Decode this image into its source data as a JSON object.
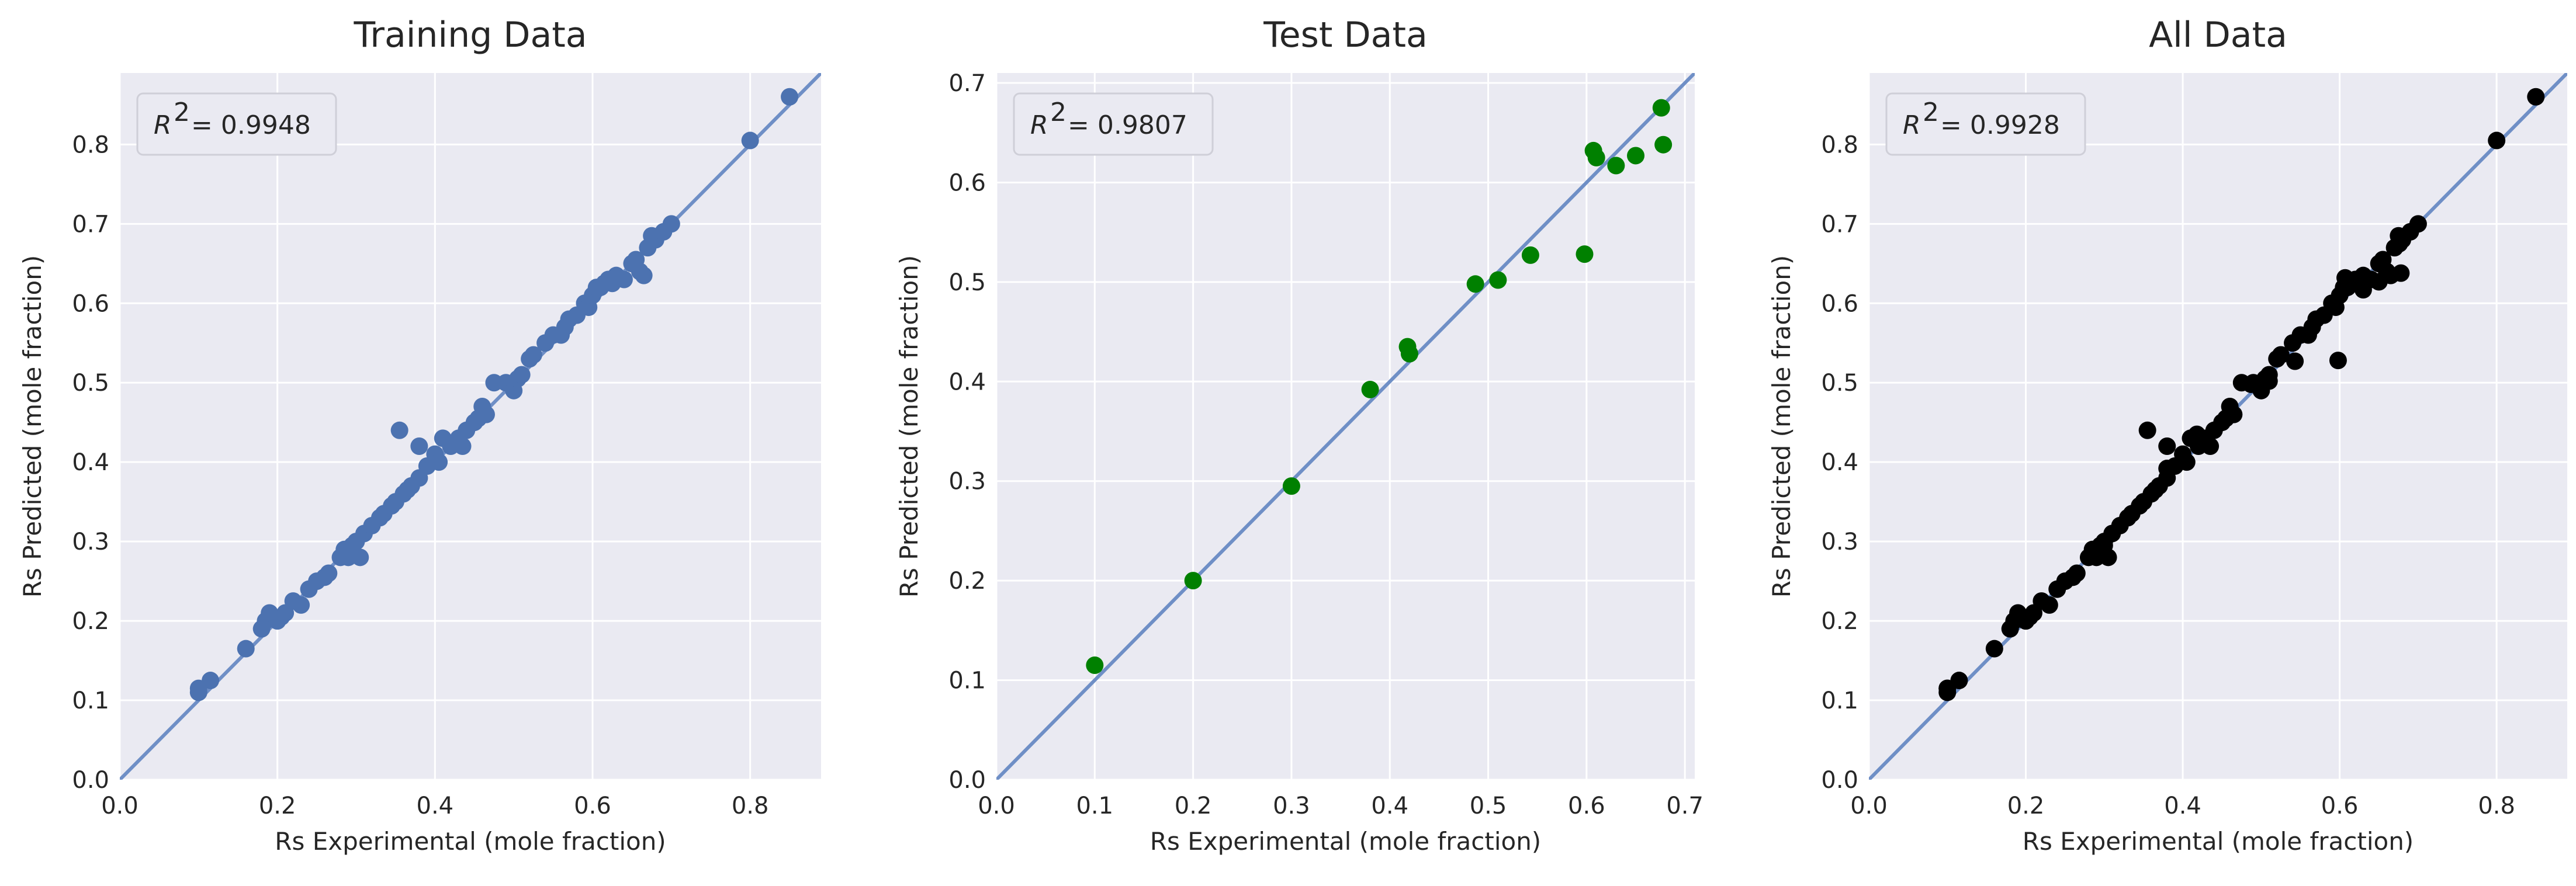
{
  "chart_data": [
    {
      "type": "scatter",
      "title": "Training Data",
      "xlabel": "Rs Experimental (mole fraction)",
      "ylabel": "Rs Predicted (mole fraction)",
      "annotation": "R² = 0.9948",
      "r2_label": "R",
      "r2_value": "= 0.9948",
      "xlim": [
        0.0,
        0.89
      ],
      "ylim": [
        0.0,
        0.89
      ],
      "xticks": [
        0.0,
        0.2,
        0.4,
        0.6,
        0.8
      ],
      "yticks": [
        0.0,
        0.1,
        0.2,
        0.3,
        0.4,
        0.5,
        0.6,
        0.7,
        0.8
      ],
      "xticklabels": [
        "0.0",
        "0.2",
        "0.4",
        "0.6",
        "0.8"
      ],
      "yticklabels": [
        "0.0",
        "0.1",
        "0.2",
        "0.3",
        "0.4",
        "0.5",
        "0.6",
        "0.7",
        "0.8"
      ],
      "grid": true,
      "color": "#4c72b0",
      "line_color": "#6f8fc6",
      "fit_line": [
        [
          0.0,
          0.0
        ],
        [
          0.89,
          0.89
        ]
      ],
      "points": [
        [
          0.1,
          0.11
        ],
        [
          0.1,
          0.115
        ],
        [
          0.115,
          0.125
        ],
        [
          0.16,
          0.165
        ],
        [
          0.18,
          0.19
        ],
        [
          0.185,
          0.2
        ],
        [
          0.19,
          0.21
        ],
        [
          0.2,
          0.2
        ],
        [
          0.205,
          0.205
        ],
        [
          0.21,
          0.21
        ],
        [
          0.22,
          0.225
        ],
        [
          0.23,
          0.22
        ],
        [
          0.24,
          0.24
        ],
        [
          0.25,
          0.25
        ],
        [
          0.26,
          0.255
        ],
        [
          0.265,
          0.26
        ],
        [
          0.28,
          0.28
        ],
        [
          0.285,
          0.29
        ],
        [
          0.29,
          0.28
        ],
        [
          0.295,
          0.295
        ],
        [
          0.3,
          0.3
        ],
        [
          0.305,
          0.28
        ],
        [
          0.31,
          0.31
        ],
        [
          0.32,
          0.32
        ],
        [
          0.33,
          0.33
        ],
        [
          0.335,
          0.335
        ],
        [
          0.345,
          0.345
        ],
        [
          0.35,
          0.35
        ],
        [
          0.36,
          0.36
        ],
        [
          0.365,
          0.365
        ],
        [
          0.37,
          0.37
        ],
        [
          0.355,
          0.44
        ],
        [
          0.38,
          0.42
        ],
        [
          0.38,
          0.38
        ],
        [
          0.39,
          0.395
        ],
        [
          0.4,
          0.41
        ],
        [
          0.405,
          0.4
        ],
        [
          0.41,
          0.43
        ],
        [
          0.42,
          0.42
        ],
        [
          0.425,
          0.425
        ],
        [
          0.43,
          0.43
        ],
        [
          0.435,
          0.42
        ],
        [
          0.44,
          0.44
        ],
        [
          0.45,
          0.45
        ],
        [
          0.455,
          0.455
        ],
        [
          0.46,
          0.47
        ],
        [
          0.465,
          0.46
        ],
        [
          0.475,
          0.5
        ],
        [
          0.49,
          0.5
        ],
        [
          0.5,
          0.49
        ],
        [
          0.505,
          0.505
        ],
        [
          0.51,
          0.51
        ],
        [
          0.52,
          0.53
        ],
        [
          0.525,
          0.535
        ],
        [
          0.54,
          0.55
        ],
        [
          0.55,
          0.56
        ],
        [
          0.56,
          0.56
        ],
        [
          0.565,
          0.57
        ],
        [
          0.57,
          0.58
        ],
        [
          0.58,
          0.585
        ],
        [
          0.59,
          0.6
        ],
        [
          0.595,
          0.595
        ],
        [
          0.6,
          0.61
        ],
        [
          0.605,
          0.62
        ],
        [
          0.61,
          0.62
        ],
        [
          0.615,
          0.625
        ],
        [
          0.62,
          0.63
        ],
        [
          0.625,
          0.625
        ],
        [
          0.63,
          0.635
        ],
        [
          0.64,
          0.63
        ],
        [
          0.65,
          0.65
        ],
        [
          0.655,
          0.655
        ],
        [
          0.66,
          0.64
        ],
        [
          0.665,
          0.635
        ],
        [
          0.67,
          0.67
        ],
        [
          0.675,
          0.685
        ],
        [
          0.68,
          0.68
        ],
        [
          0.69,
          0.69
        ],
        [
          0.7,
          0.7
        ],
        [
          0.8,
          0.805
        ],
        [
          0.85,
          0.86
        ]
      ]
    },
    {
      "type": "scatter",
      "title": "Test Data",
      "xlabel": "Rs Experimental (mole fraction)",
      "ylabel": "Rs Predicted (mole fraction)",
      "annotation": "R² = 0.9807",
      "r2_label": "R",
      "r2_value": "= 0.9807",
      "xlim": [
        0.0,
        0.71
      ],
      "ylim": [
        0.0,
        0.71
      ],
      "xticks": [
        0.0,
        0.1,
        0.2,
        0.3,
        0.4,
        0.5,
        0.6,
        0.7
      ],
      "yticks": [
        0.0,
        0.1,
        0.2,
        0.3,
        0.4,
        0.5,
        0.6,
        0.7
      ],
      "xticklabels": [
        "0.0",
        "0.1",
        "0.2",
        "0.3",
        "0.4",
        "0.5",
        "0.6",
        "0.7"
      ],
      "yticklabels": [
        "0.0",
        "0.1",
        "0.2",
        "0.3",
        "0.4",
        "0.5",
        "0.6",
        "0.7"
      ],
      "grid": true,
      "color": "#008000",
      "line_color": "#6f8fc6",
      "fit_line": [
        [
          0.0,
          0.0
        ],
        [
          0.71,
          0.71
        ]
      ],
      "points": [
        [
          0.1,
          0.115
        ],
        [
          0.2,
          0.2
        ],
        [
          0.3,
          0.295
        ],
        [
          0.38,
          0.392
        ],
        [
          0.418,
          0.435
        ],
        [
          0.42,
          0.428
        ],
        [
          0.487,
          0.498
        ],
        [
          0.51,
          0.502
        ],
        [
          0.543,
          0.527
        ],
        [
          0.598,
          0.528
        ],
        [
          0.607,
          0.632
        ],
        [
          0.61,
          0.625
        ],
        [
          0.63,
          0.617
        ],
        [
          0.65,
          0.627
        ],
        [
          0.676,
          0.675
        ],
        [
          0.678,
          0.638
        ]
      ]
    },
    {
      "type": "scatter",
      "title": "All Data",
      "xlabel": "Rs Experimental (mole fraction)",
      "ylabel": "Rs Predicted (mole fraction)",
      "annotation": "R² = 0.9928",
      "r2_label": "R",
      "r2_value": "= 0.9928",
      "xlim": [
        0.0,
        0.89
      ],
      "ylim": [
        0.0,
        0.89
      ],
      "xticks": [
        0.0,
        0.2,
        0.4,
        0.6,
        0.8
      ],
      "yticks": [
        0.0,
        0.1,
        0.2,
        0.3,
        0.4,
        0.5,
        0.6,
        0.7,
        0.8
      ],
      "xticklabels": [
        "0.0",
        "0.2",
        "0.4",
        "0.6",
        "0.8"
      ],
      "yticklabels": [
        "0.0",
        "0.1",
        "0.2",
        "0.3",
        "0.4",
        "0.5",
        "0.6",
        "0.7",
        "0.8"
      ],
      "grid": true,
      "color": "#000000",
      "line_color": "#6f8fc6",
      "fit_line": [
        [
          0.0,
          0.0
        ],
        [
          0.89,
          0.89
        ]
      ],
      "points": [
        [
          0.1,
          0.11
        ],
        [
          0.1,
          0.115
        ],
        [
          0.115,
          0.125
        ],
        [
          0.16,
          0.165
        ],
        [
          0.18,
          0.19
        ],
        [
          0.185,
          0.2
        ],
        [
          0.19,
          0.21
        ],
        [
          0.2,
          0.2
        ],
        [
          0.205,
          0.205
        ],
        [
          0.21,
          0.21
        ],
        [
          0.22,
          0.225
        ],
        [
          0.23,
          0.22
        ],
        [
          0.24,
          0.24
        ],
        [
          0.25,
          0.25
        ],
        [
          0.26,
          0.255
        ],
        [
          0.265,
          0.26
        ],
        [
          0.28,
          0.28
        ],
        [
          0.285,
          0.29
        ],
        [
          0.29,
          0.28
        ],
        [
          0.295,
          0.295
        ],
        [
          0.3,
          0.3
        ],
        [
          0.305,
          0.28
        ],
        [
          0.31,
          0.31
        ],
        [
          0.32,
          0.32
        ],
        [
          0.33,
          0.33
        ],
        [
          0.335,
          0.335
        ],
        [
          0.345,
          0.345
        ],
        [
          0.35,
          0.35
        ],
        [
          0.36,
          0.36
        ],
        [
          0.365,
          0.365
        ],
        [
          0.37,
          0.37
        ],
        [
          0.355,
          0.44
        ],
        [
          0.38,
          0.42
        ],
        [
          0.38,
          0.38
        ],
        [
          0.39,
          0.395
        ],
        [
          0.4,
          0.41
        ],
        [
          0.405,
          0.4
        ],
        [
          0.41,
          0.43
        ],
        [
          0.42,
          0.42
        ],
        [
          0.425,
          0.425
        ],
        [
          0.43,
          0.43
        ],
        [
          0.435,
          0.42
        ],
        [
          0.44,
          0.44
        ],
        [
          0.45,
          0.45
        ],
        [
          0.455,
          0.455
        ],
        [
          0.46,
          0.47
        ],
        [
          0.465,
          0.46
        ],
        [
          0.475,
          0.5
        ],
        [
          0.49,
          0.5
        ],
        [
          0.5,
          0.49
        ],
        [
          0.505,
          0.505
        ],
        [
          0.51,
          0.51
        ],
        [
          0.52,
          0.53
        ],
        [
          0.525,
          0.535
        ],
        [
          0.54,
          0.55
        ],
        [
          0.55,
          0.56
        ],
        [
          0.56,
          0.56
        ],
        [
          0.565,
          0.57
        ],
        [
          0.57,
          0.58
        ],
        [
          0.58,
          0.585
        ],
        [
          0.59,
          0.6
        ],
        [
          0.595,
          0.595
        ],
        [
          0.6,
          0.61
        ],
        [
          0.605,
          0.62
        ],
        [
          0.61,
          0.62
        ],
        [
          0.615,
          0.625
        ],
        [
          0.62,
          0.63
        ],
        [
          0.625,
          0.625
        ],
        [
          0.63,
          0.635
        ],
        [
          0.64,
          0.63
        ],
        [
          0.65,
          0.65
        ],
        [
          0.655,
          0.655
        ],
        [
          0.66,
          0.64
        ],
        [
          0.665,
          0.635
        ],
        [
          0.67,
          0.67
        ],
        [
          0.675,
          0.685
        ],
        [
          0.68,
          0.68
        ],
        [
          0.69,
          0.69
        ],
        [
          0.7,
          0.7
        ],
        [
          0.8,
          0.805
        ],
        [
          0.85,
          0.86
        ],
        [
          0.1,
          0.115
        ],
        [
          0.2,
          0.2
        ],
        [
          0.3,
          0.295
        ],
        [
          0.38,
          0.392
        ],
        [
          0.418,
          0.435
        ],
        [
          0.42,
          0.428
        ],
        [
          0.487,
          0.498
        ],
        [
          0.51,
          0.502
        ],
        [
          0.543,
          0.527
        ],
        [
          0.598,
          0.528
        ],
        [
          0.607,
          0.632
        ],
        [
          0.61,
          0.625
        ],
        [
          0.63,
          0.617
        ],
        [
          0.65,
          0.627
        ],
        [
          0.676,
          0.675
        ],
        [
          0.678,
          0.638
        ]
      ]
    }
  ]
}
